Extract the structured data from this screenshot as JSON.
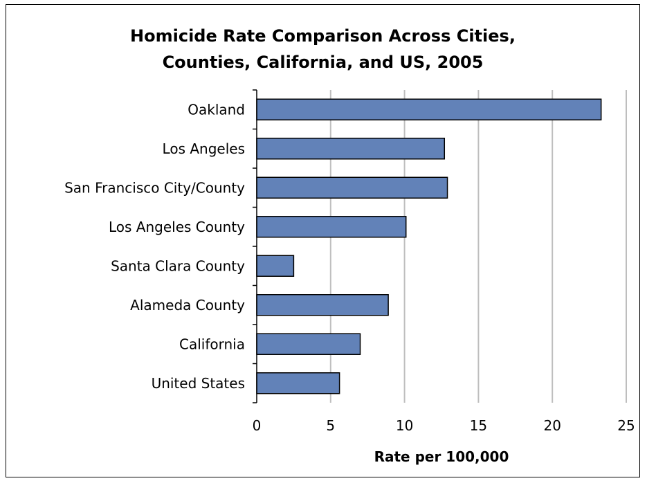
{
  "chart_data": {
    "type": "bar",
    "orientation": "horizontal",
    "title_lines": [
      "Homicide Rate Comparison Across Cities,",
      "Counties, California, and US, 2005"
    ],
    "categories": [
      "Oakland",
      "Los Angeles",
      "San Francisco City/County",
      "Los Angeles County",
      "Santa Clara County",
      "Alameda County",
      "California",
      "United States"
    ],
    "values": [
      23.3,
      12.7,
      12.9,
      10.1,
      2.5,
      8.9,
      7.0,
      5.6
    ],
    "xlabel": "Rate per 100,000",
    "xlim": [
      0,
      25
    ],
    "xticks": [
      "0",
      "5",
      "10",
      "15",
      "20",
      "25"
    ],
    "grid": "vertical",
    "legend": "none",
    "bar_color": "#6282B8",
    "bar_border_color": "#000000",
    "grid_color": "#BEBEBE"
  }
}
